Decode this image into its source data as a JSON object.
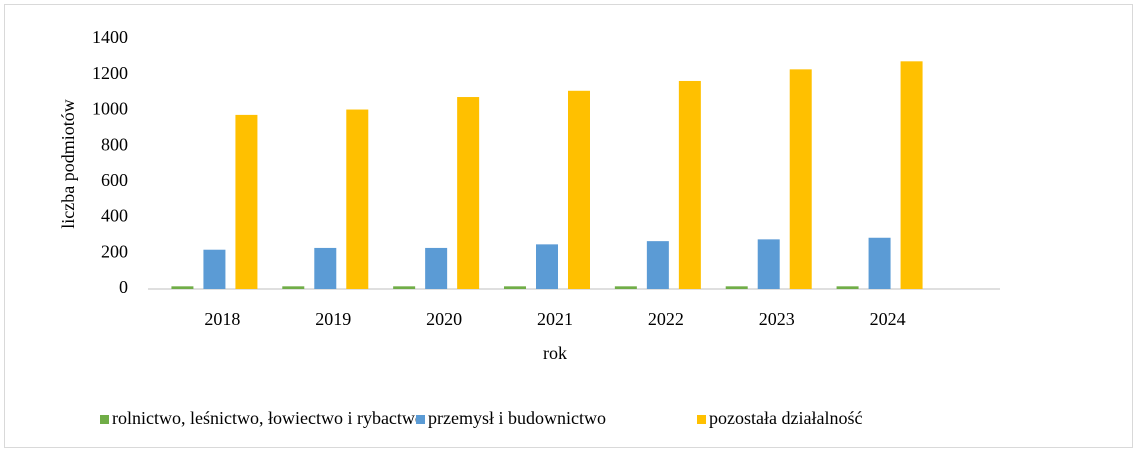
{
  "chart_data": {
    "type": "bar",
    "categories": [
      "2018",
      "2019",
      "2020",
      "2021",
      "2022",
      "2023",
      "2024"
    ],
    "series": [
      {
        "name": "rolnictwo, leśnictwo, łowiectwo i rybactwo",
        "color": "#70ad47",
        "values": [
          15,
          15,
          15,
          15,
          15,
          15,
          15
        ]
      },
      {
        "name": "przemysł i budownictwo",
        "color": "#5b9bd5",
        "values": [
          220,
          230,
          230,
          250,
          268,
          278,
          287
        ]
      },
      {
        "name": "pozostała działalność",
        "color": "#ffc000",
        "values": [
          975,
          1005,
          1075,
          1110,
          1165,
          1230,
          1275
        ]
      }
    ],
    "x_label": "rok",
    "y_label": "liczba podmiotów",
    "ylim": [
      0,
      1400
    ],
    "yticks": [
      0,
      200,
      400,
      600,
      800,
      1000,
      1200,
      1400
    ],
    "grid": false,
    "legend": "bottom"
  }
}
